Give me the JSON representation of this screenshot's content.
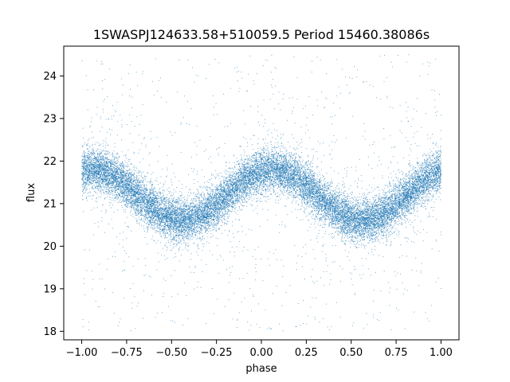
{
  "chart_data": {
    "type": "scatter",
    "title": "1SWASPJ124633.58+510059.5 Period 15460.38086s",
    "xlabel": "phase",
    "ylabel": "flux",
    "xlim": [
      -1.1,
      1.1
    ],
    "ylim": [
      17.8,
      24.7
    ],
    "x_ticks": [
      -1.0,
      -0.75,
      -0.5,
      -0.25,
      0.0,
      0.25,
      0.5,
      0.75,
      1.0
    ],
    "x_tick_labels": [
      "−1.00",
      "−0.75",
      "−0.50",
      "−0.25",
      "0.00",
      "0.25",
      "0.50",
      "0.75",
      "1.00"
    ],
    "y_ticks": [
      18,
      19,
      20,
      21,
      22,
      23,
      24
    ],
    "y_tick_labels": [
      "18",
      "19",
      "20",
      "21",
      "22",
      "23",
      "24"
    ],
    "grid": false,
    "series": [
      {
        "color": "#1f77b4",
        "marker": "point",
        "approx_point_count": 20000,
        "phase_range": [
          -1.0,
          1.0
        ],
        "mean_flux": 21.2,
        "amplitude": 0.6,
        "peak_phase": 0.06,
        "trough_phase": -0.44,
        "core_scatter": 0.25,
        "outlier_fraction": 0.08,
        "outlier_flux_range": [
          18.0,
          24.5
        ]
      }
    ]
  }
}
